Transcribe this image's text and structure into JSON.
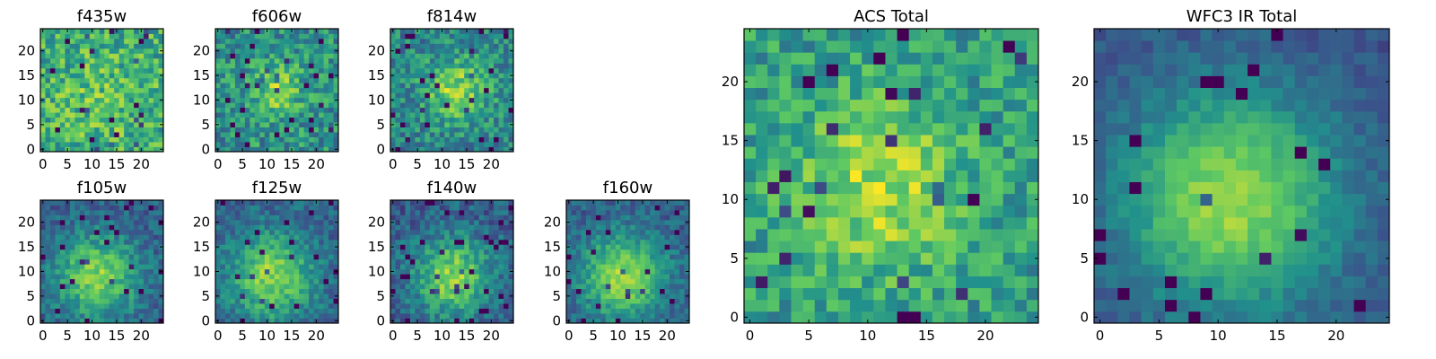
{
  "figure": {
    "colormap": "viridis",
    "palette": [
      "#440154",
      "#3b528b",
      "#21918c",
      "#5ec962",
      "#fde725"
    ],
    "background": "#ffffff"
  },
  "chart_data": [
    {
      "type": "heatmap",
      "title": "f435w",
      "grid_size": 25,
      "xlim": [
        0,
        24
      ],
      "ylim": [
        0,
        24
      ],
      "xticks": [
        "0",
        "5",
        "10",
        "15",
        "20"
      ],
      "yticks": [
        "0",
        "5",
        "10",
        "15",
        "20"
      ],
      "signal": {
        "peak_x": 12,
        "peak_y": 10,
        "sigma": 6,
        "amplitude": 0.1
      },
      "noise": 0.38,
      "base": 0.62,
      "seed": 11
    },
    {
      "type": "heatmap",
      "title": "f606w",
      "grid_size": 25,
      "xlim": [
        0,
        24
      ],
      "ylim": [
        0,
        24
      ],
      "xticks": [
        "0",
        "5",
        "10",
        "15",
        "20"
      ],
      "yticks": [
        "0",
        "5",
        "10",
        "15",
        "20"
      ],
      "signal": {
        "peak_x": 12,
        "peak_y": 12,
        "sigma": 4,
        "amplitude": 0.28
      },
      "noise": 0.35,
      "base": 0.5,
      "seed": 23
    },
    {
      "type": "heatmap",
      "title": "f814w",
      "grid_size": 25,
      "xlim": [
        0,
        24
      ],
      "ylim": [
        0,
        24
      ],
      "xticks": [
        "0",
        "5",
        "10",
        "15",
        "20"
      ],
      "yticks": [
        "0",
        "5",
        "10",
        "15",
        "20"
      ],
      "signal": {
        "peak_x": 13,
        "peak_y": 12,
        "sigma": 4.5,
        "amplitude": 0.38
      },
      "noise": 0.32,
      "base": 0.45,
      "seed": 37
    },
    {
      "type": "heatmap",
      "title": "f105w",
      "grid_size": 25,
      "xlim": [
        0,
        24
      ],
      "ylim": [
        0,
        24
      ],
      "xticks": [
        "0",
        "5",
        "10",
        "15",
        "20"
      ],
      "yticks": [
        "0",
        "5",
        "10",
        "15",
        "20"
      ],
      "signal": {
        "peak_x": 11,
        "peak_y": 9,
        "sigma": 6,
        "amplitude": 0.5
      },
      "noise": 0.22,
      "base": 0.3,
      "seed": 41
    },
    {
      "type": "heatmap",
      "title": "f125w",
      "grid_size": 25,
      "xlim": [
        0,
        24
      ],
      "ylim": [
        0,
        24
      ],
      "xticks": [
        "0",
        "5",
        "10",
        "15",
        "20"
      ],
      "yticks": [
        "0",
        "5",
        "10",
        "15",
        "20"
      ],
      "signal": {
        "peak_x": 11,
        "peak_y": 9,
        "sigma": 6,
        "amplitude": 0.5
      },
      "noise": 0.22,
      "base": 0.32,
      "seed": 53
    },
    {
      "type": "heatmap",
      "title": "f140w",
      "grid_size": 25,
      "xlim": [
        0,
        24
      ],
      "ylim": [
        0,
        24
      ],
      "xticks": [
        "0",
        "5",
        "10",
        "15",
        "20"
      ],
      "yticks": [
        "0",
        "5",
        "10",
        "15",
        "20"
      ],
      "signal": {
        "peak_x": 12,
        "peak_y": 9,
        "sigma": 5.5,
        "amplitude": 0.52
      },
      "noise": 0.24,
      "base": 0.3,
      "seed": 67
    },
    {
      "type": "heatmap",
      "title": "f160w",
      "grid_size": 25,
      "xlim": [
        0,
        24
      ],
      "ylim": [
        0,
        24
      ],
      "xticks": [
        "0",
        "5",
        "10",
        "15",
        "20"
      ],
      "yticks": [
        "0",
        "5",
        "10",
        "15",
        "20"
      ],
      "signal": {
        "peak_x": 11,
        "peak_y": 9,
        "sigma": 6,
        "amplitude": 0.55
      },
      "noise": 0.2,
      "base": 0.3,
      "seed": 79
    },
    {
      "type": "heatmap",
      "title": "ACS Total",
      "grid_size": 25,
      "xlim": [
        0,
        24
      ],
      "ylim": [
        0,
        24
      ],
      "xticks": [
        "0",
        "5",
        "10",
        "15",
        "20"
      ],
      "yticks": [
        "0",
        "5",
        "10",
        "15",
        "20"
      ],
      "signal": {
        "peak_x": 11,
        "peak_y": 11,
        "sigma": 5,
        "amplitude": 0.32
      },
      "noise": 0.3,
      "base": 0.55,
      "seed": 97
    },
    {
      "type": "heatmap",
      "title": "WFC3 IR Total",
      "grid_size": 25,
      "xlim": [
        0,
        24
      ],
      "ylim": [
        0,
        24
      ],
      "xticks": [
        "0",
        "5",
        "10",
        "15",
        "20"
      ],
      "yticks": [
        "0",
        "5",
        "10",
        "15",
        "20"
      ],
      "signal": {
        "peak_x": 11,
        "peak_y": 10,
        "sigma": 6.5,
        "amplitude": 0.6
      },
      "noise": 0.12,
      "base": 0.25,
      "seed": 113
    }
  ]
}
